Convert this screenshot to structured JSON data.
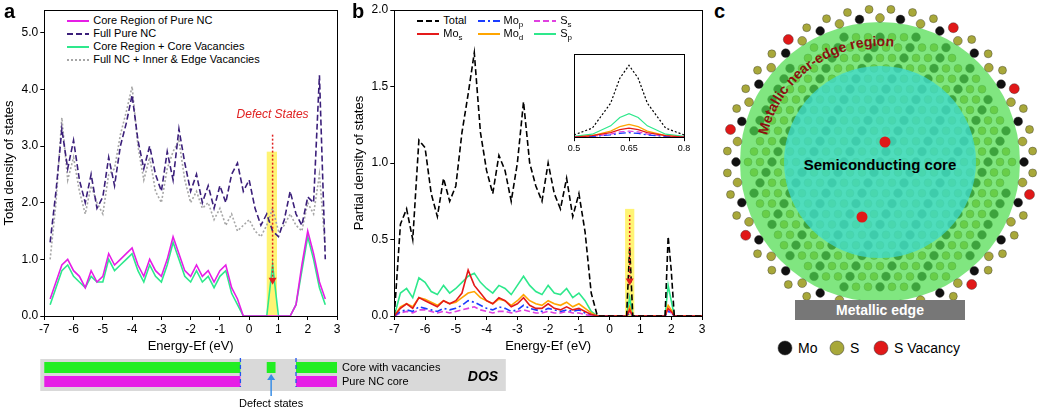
{
  "chart_data": [
    {
      "panel": "a",
      "type": "line",
      "x_label": "Energy-Ef (eV)",
      "y_label": "Total density of states",
      "xlim": [
        -7,
        3
      ],
      "xticks": [
        -7,
        -6,
        -5,
        -4,
        -3,
        -2,
        -1,
        0,
        1,
        2,
        3
      ],
      "ylim": [
        0,
        5.4
      ],
      "yticks": [
        {
          "value": 0,
          "label": "0.0"
        },
        {
          "value": 1,
          "label": "1.0"
        },
        {
          "value": 2,
          "label": "2.0"
        },
        {
          "value": 3,
          "label": "3.0"
        },
        {
          "value": 4,
          "label": "4.0"
        },
        {
          "value": 5,
          "label": "5.0"
        }
      ],
      "grid": false,
      "legend": "upper left",
      "x": [
        -6.8,
        -6.6,
        -6.4,
        -6.2,
        -6.0,
        -5.8,
        -5.6,
        -5.4,
        -5.2,
        -5.0,
        -4.8,
        -4.6,
        -4.4,
        -4.2,
        -4.0,
        -3.8,
        -3.6,
        -3.4,
        -3.2,
        -3.0,
        -2.8,
        -2.6,
        -2.4,
        -2.2,
        -2.0,
        -1.8,
        -1.6,
        -1.4,
        -1.2,
        -1.0,
        -0.8,
        -0.6,
        -0.4,
        -0.2,
        0.0,
        0.2,
        0.4,
        0.6,
        0.8,
        1.0,
        1.2,
        1.4,
        1.6,
        1.8,
        2.0,
        2.2,
        2.4,
        2.6
      ],
      "series": [
        {
          "name": "Core Region of Pure NC",
          "color": "#e61ee6",
          "line_style": "solid",
          "values": [
            0.3,
            0.6,
            0.9,
            1.0,
            0.8,
            0.7,
            0.5,
            0.8,
            0.6,
            0.7,
            1.1,
            0.9,
            1.0,
            1.1,
            1.2,
            0.9,
            0.7,
            1.0,
            0.8,
            0.7,
            1.0,
            1.4,
            1.1,
            0.8,
            0.7,
            0.9,
            0.7,
            0.8,
            0.6,
            0.8,
            0.9,
            0.5,
            0.3,
            0.0,
            0,
            0,
            0,
            0,
            0,
            0,
            0,
            0,
            0.2,
            0.9,
            1.5,
            1.1,
            0.6,
            0.3
          ]
        },
        {
          "name": "Full Pure NC",
          "color": "#3b1f7a",
          "line_style": "dashed",
          "values": [
            1.3,
            2.2,
            3.3,
            2.6,
            3.1,
            2.4,
            2.0,
            2.5,
            1.9,
            2.1,
            2.8,
            2.3,
            3.0,
            3.4,
            3.9,
            3.1,
            2.6,
            3.0,
            2.5,
            2.2,
            2.9,
            2.4,
            3.3,
            2.7,
            2.2,
            2.5,
            2.0,
            2.3,
            1.9,
            2.3,
            2.0,
            2.5,
            2.7,
            2.2,
            2.4,
            1.9,
            1.6,
            1.8,
            1.5,
            1.4,
            1.7,
            2.2,
            1.8,
            1.6,
            2.1,
            2.0,
            4.25,
            1.0
          ]
        },
        {
          "name": "Core Region + Core Vacancies",
          "color": "#2ee88c",
          "line_style": "solid",
          "values": [
            0.2,
            0.5,
            0.8,
            0.9,
            0.7,
            0.6,
            0.5,
            0.7,
            0.6,
            0.6,
            1.0,
            0.8,
            0.9,
            1.0,
            1.1,
            0.8,
            0.6,
            0.9,
            0.7,
            0.6,
            0.9,
            1.3,
            1.0,
            0.7,
            0.6,
            0.8,
            0.6,
            0.7,
            0.5,
            0.7,
            0.8,
            0.4,
            0.2,
            0.0,
            0,
            0,
            0,
            0,
            0.9,
            0,
            0,
            0,
            0.2,
            0.8,
            1.4,
            1.0,
            0.5,
            0.2
          ]
        },
        {
          "name": "Full NC + Inner & Edge Vacancies",
          "color": "#a6a6a6",
          "line_style": "dotted",
          "values": [
            1.0,
            2.0,
            3.5,
            2.4,
            2.8,
            2.2,
            1.8,
            2.3,
            2.0,
            1.8,
            2.5,
            2.6,
            3.2,
            3.6,
            4.05,
            3.0,
            2.4,
            2.8,
            2.2,
            2.0,
            2.6,
            2.9,
            3.1,
            2.4,
            2.0,
            2.2,
            1.9,
            2.0,
            1.7,
            1.9,
            1.6,
            1.8,
            1.5,
            1.6,
            1.7,
            1.5,
            1.4,
            1.6,
            1.9,
            1.5,
            1.6,
            1.8,
            1.6,
            1.5,
            2.0,
            1.8,
            2.5,
            1.2
          ]
        }
      ],
      "annotation": {
        "text": "Defect States",
        "color": "#e02020",
        "x": 0.8,
        "y": 3.45,
        "arrow_y": [
          3.2,
          0.55
        ],
        "highlight_x": [
          0.6,
          0.95
        ],
        "highlight_y": [
          0,
          2.9
        ]
      },
      "dos_schematic": {
        "title": "DOS",
        "annotation": "Defect states",
        "rows": [
          {
            "label": "Core with vacancies",
            "color": "#22ee22",
            "bands": [
              [
                -7,
                -0.3
              ],
              [
                0.6,
                0.9
              ],
              [
                1.6,
                3
              ]
            ]
          },
          {
            "label": "Pure NC core",
            "color": "#e61ee6",
            "bands": [
              [
                -7,
                -0.3
              ],
              [
                1.6,
                3
              ]
            ]
          }
        ]
      }
    },
    {
      "panel": "b",
      "type": "line",
      "x_label": "Energy-Ef (eV)",
      "y_label": "Partial density of states",
      "xlim": [
        -7,
        3
      ],
      "xticks": [
        -7,
        -6,
        -5,
        -4,
        -3,
        -2,
        -1,
        0,
        1,
        2,
        3
      ],
      "ylim": [
        0,
        2
      ],
      "yticks": [
        {
          "value": 0,
          "label": "0.0"
        },
        {
          "value": 0.5,
          "label": "0.5"
        },
        {
          "value": 1,
          "label": "1.0"
        },
        {
          "value": 1.5,
          "label": "1.5"
        },
        {
          "value": 2,
          "label": "2.0"
        }
      ],
      "grid": false,
      "legend": "upper left",
      "x": [
        -7.0,
        -6.8,
        -6.6,
        -6.4,
        -6.2,
        -6.0,
        -5.8,
        -5.6,
        -5.4,
        -5.2,
        -5.0,
        -4.8,
        -4.6,
        -4.4,
        -4.2,
        -4.0,
        -3.8,
        -3.6,
        -3.4,
        -3.2,
        -3.0,
        -2.8,
        -2.6,
        -2.4,
        -2.2,
        -2.0,
        -1.8,
        -1.6,
        -1.4,
        -1.2,
        -1.0,
        -0.8,
        -0.6,
        -0.4,
        0.0,
        0.55,
        0.65,
        0.75,
        1.0,
        1.8,
        1.9,
        2.0,
        2.1,
        2.4,
        3.0
      ],
      "series": [
        {
          "name": "Total",
          "color": "#000000",
          "line_style": "dashed",
          "values": [
            0.0,
            0.6,
            0.7,
            0.5,
            1.15,
            1.1,
            0.8,
            0.65,
            0.9,
            0.75,
            0.85,
            1.2,
            1.45,
            1.72,
            1.2,
            0.95,
            0.8,
            1.05,
            0.95,
            0.75,
            1.0,
            1.4,
            1.0,
            0.85,
            0.75,
            1.0,
            0.8,
            0.7,
            0.9,
            0.65,
            0.8,
            0.55,
            0.15,
            0.0,
            0,
            0,
            0.45,
            0,
            0,
            0,
            0.52,
            0.3,
            0,
            0,
            0
          ]
        },
        {
          "name": "Mos",
          "color": "#e41a1a",
          "line_style": "solid",
          "values": [
            0,
            0.05,
            0.08,
            0.05,
            0.12,
            0.1,
            0.08,
            0.06,
            0.1,
            0.08,
            0.1,
            0.15,
            0.3,
            0.2,
            0.15,
            0.1,
            0.08,
            0.12,
            0.1,
            0.06,
            0.08,
            0.12,
            0.07,
            0.05,
            0.05,
            0.08,
            0.05,
            0.04,
            0.06,
            0.04,
            0.05,
            0.03,
            0.01,
            0,
            0,
            0,
            0.04,
            0,
            0,
            0,
            0.05,
            0.03,
            0,
            0,
            0
          ]
        },
        {
          "name": "Mop",
          "color": "#1a3cff",
          "line_style": "dashdot",
          "values": [
            0,
            0.03,
            0.04,
            0.03,
            0.06,
            0.05,
            0.04,
            0.03,
            0.05,
            0.04,
            0.05,
            0.07,
            0.1,
            0.09,
            0.07,
            0.05,
            0.04,
            0.06,
            0.05,
            0.03,
            0.04,
            0.07,
            0.05,
            0.04,
            0.03,
            0.05,
            0.04,
            0.03,
            0.04,
            0.03,
            0.04,
            0.02,
            0.01,
            0,
            0,
            0,
            0.02,
            0,
            0,
            0,
            0.03,
            0.02,
            0,
            0,
            0
          ]
        },
        {
          "name": "Mod",
          "color": "#ffa500",
          "line_style": "solid",
          "values": [
            0,
            0.06,
            0.08,
            0.06,
            0.12,
            0.11,
            0.09,
            0.07,
            0.1,
            0.08,
            0.09,
            0.12,
            0.15,
            0.16,
            0.12,
            0.1,
            0.08,
            0.11,
            0.1,
            0.07,
            0.1,
            0.14,
            0.1,
            0.08,
            0.07,
            0.1,
            0.08,
            0.07,
            0.09,
            0.06,
            0.08,
            0.05,
            0.02,
            0,
            0,
            0,
            0.06,
            0,
            0,
            0,
            0.07,
            0.04,
            0,
            0,
            0
          ]
        },
        {
          "name": "Ss",
          "color": "#e040e0",
          "line_style": "dashed",
          "values": [
            0,
            0.02,
            0.03,
            0.02,
            0.04,
            0.04,
            0.03,
            0.02,
            0.03,
            0.02,
            0.03,
            0.04,
            0.05,
            0.06,
            0.04,
            0.03,
            0.02,
            0.03,
            0.03,
            0.02,
            0.03,
            0.04,
            0.03,
            0.02,
            0.02,
            0.03,
            0.02,
            0.02,
            0.03,
            0.02,
            0.02,
            0.01,
            0.0,
            0,
            0,
            0,
            0.03,
            0,
            0,
            0,
            0.04,
            0.02,
            0,
            0,
            0
          ]
        },
        {
          "name": "Sp",
          "color": "#2ee88c",
          "line_style": "solid",
          "values": [
            0,
            0.15,
            0.18,
            0.12,
            0.25,
            0.22,
            0.16,
            0.14,
            0.2,
            0.15,
            0.18,
            0.22,
            0.26,
            0.28,
            0.22,
            0.18,
            0.15,
            0.2,
            0.18,
            0.14,
            0.2,
            0.26,
            0.2,
            0.16,
            0.14,
            0.2,
            0.15,
            0.14,
            0.18,
            0.12,
            0.15,
            0.1,
            0.03,
            0,
            0,
            0,
            0.12,
            0,
            0,
            0,
            0.2,
            0.1,
            0,
            0,
            0
          ]
        }
      ],
      "annotation": {
        "color": "#e02020",
        "x": 0.65,
        "arrow_y": [
          0.66,
          0.2
        ],
        "highlight_x": [
          0.5,
          0.8
        ],
        "highlight_y": [
          0,
          0.7
        ]
      },
      "inset": {
        "type": "line",
        "grid": false,
        "tick_labels": "x",
        "xlim": [
          0.5,
          0.8
        ],
        "xticks": [
          0.5,
          0.65,
          0.8
        ],
        "ylim": [
          0,
          1.1
        ],
        "x": [
          0.5,
          0.55,
          0.6,
          0.625,
          0.65,
          0.675,
          0.7,
          0.75,
          0.8
        ],
        "series": [
          {
            "color": "#000000",
            "line_style": "dotted",
            "values": [
              0.03,
              0.12,
              0.45,
              0.78,
              0.95,
              0.78,
              0.45,
              0.12,
              0.03
            ]
          },
          {
            "color": "#e41a1a",
            "line_style": "solid",
            "values": [
              0.0,
              0.02,
              0.06,
              0.1,
              0.12,
              0.1,
              0.06,
              0.02,
              0.0
            ]
          },
          {
            "color": "#1a3cff",
            "line_style": "dashdot",
            "values": [
              0.0,
              0.01,
              0.03,
              0.05,
              0.06,
              0.05,
              0.03,
              0.01,
              0.0
            ]
          },
          {
            "color": "#ffa500",
            "line_style": "solid",
            "values": [
              0.0,
              0.02,
              0.08,
              0.14,
              0.17,
              0.14,
              0.08,
              0.02,
              0.0
            ]
          },
          {
            "color": "#e040e0",
            "line_style": "dashed",
            "values": [
              0.0,
              0.01,
              0.04,
              0.07,
              0.08,
              0.07,
              0.04,
              0.01,
              0.0
            ]
          },
          {
            "color": "#2ee88c",
            "line_style": "solid",
            "values": [
              0.01,
              0.04,
              0.15,
              0.26,
              0.31,
              0.26,
              0.15,
              0.04,
              0.01
            ]
          }
        ]
      }
    }
  ],
  "diagram": {
    "panel": "c",
    "labels": {
      "near_edge": "Metallic near-edge region",
      "core": "Semiconducting core",
      "edge": "Metallic edge"
    },
    "atoms": [
      {
        "label": "Mo",
        "color": "#111111"
      },
      {
        "label": "S",
        "color": "#a8a83a"
      },
      {
        "label": "S Vacancy",
        "color": "#e01818"
      }
    ]
  }
}
